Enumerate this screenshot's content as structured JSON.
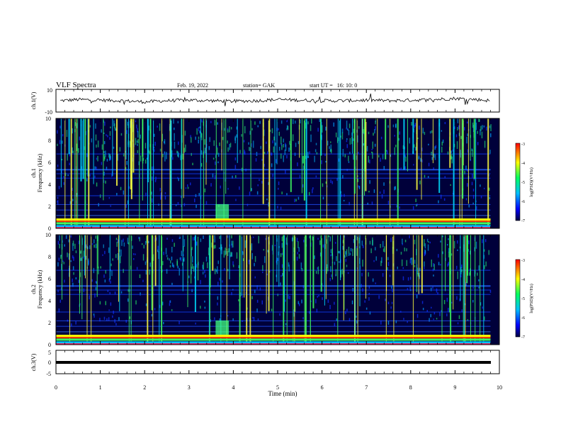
{
  "header": {
    "title": "VLF Spectra",
    "date": "Feb. 19, 2022",
    "station": "station= GAK",
    "start": "start UT =   16: 10: 0"
  },
  "chart_data": [
    {
      "type": "line",
      "panel": "ch1-waveform",
      "ylabel": "ch.1(V)",
      "ylim": [
        -10,
        10
      ],
      "yticks": [
        "10",
        "-10"
      ],
      "xlim": [
        0,
        10
      ],
      "x": [
        0.1,
        0.5,
        1.0,
        1.5,
        2.0,
        2.5,
        3.0,
        3.5,
        4.0,
        4.5,
        5.0,
        5.5,
        6.0,
        6.5,
        7.0,
        7.5,
        8.0,
        8.5,
        9.0,
        9.5,
        9.8
      ],
      "y": [
        0,
        1,
        0.5,
        0,
        -1,
        0,
        0.5,
        0,
        -0.5,
        0,
        1,
        0.5,
        0,
        0,
        0.5,
        0,
        0.5,
        1,
        2,
        1,
        0
      ],
      "color": "#000000"
    },
    {
      "type": "heatmap",
      "panel": "ch1-spectrogram",
      "ylabel": "ch.1 Frequency (kHz)",
      "ylim": [
        0,
        10
      ],
      "yticks": [
        "0",
        "2",
        "4",
        "6",
        "8",
        "10"
      ],
      "xlim": [
        0,
        10
      ],
      "colorbar": {
        "label": "log(PSD)(V^2/Hz)",
        "range": [
          -7,
          -3
        ],
        "ticks": [
          "-3",
          "-4",
          "-5",
          "-6",
          "-7"
        ]
      }
    },
    {
      "type": "heatmap",
      "panel": "ch2-spectrogram",
      "ylabel": "ch.2 Frequency (kHz)",
      "ylim": [
        0,
        10
      ],
      "yticks": [
        "0",
        "2",
        "4",
        "6",
        "8",
        "10"
      ],
      "xlim": [
        0,
        10
      ],
      "colorbar": {
        "label": "log(PSD)(V^2/Hz)",
        "range": [
          -7,
          -3
        ],
        "ticks": [
          "-3",
          "-4",
          "-5",
          "-6",
          "-7"
        ]
      }
    },
    {
      "type": "line",
      "panel": "ch3-waveform",
      "ylabel": "ch.3(V)",
      "ylim": [
        -5,
        5
      ],
      "yticks": [
        "5",
        "0",
        "-5"
      ],
      "xlim": [
        0,
        10
      ],
      "x": [
        0,
        9.8
      ],
      "y": [
        0,
        0
      ],
      "color": "#000000"
    }
  ],
  "xaxis": {
    "label": "Time (min)",
    "ticks": [
      "0",
      "1",
      "2",
      "3",
      "4",
      "5",
      "6",
      "7",
      "8",
      "9",
      "10"
    ]
  },
  "colorbar_label_1": "log(PSD)(V²/Hz)",
  "colorbar_label_2": "log(PSD)(V²/Hz)",
  "ch1_freq_label_a": "ch.1",
  "ch1_freq_label_b": "Frequency (kHz)",
  "ch2_freq_label_a": "ch.2",
  "ch2_freq_label_b": "Frequency (kHz)",
  "colors": {
    "background": "#00003a",
    "cmap": [
      "#000040",
      "#0000ff",
      "#00bfff",
      "#00ff60",
      "#ffff00",
      "#ff0000"
    ]
  }
}
